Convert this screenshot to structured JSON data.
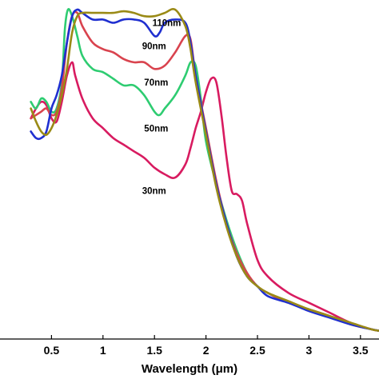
{
  "chart_data": {
    "type": "line",
    "xlabel": "Wavelength (μm)",
    "ylabel": "",
    "xlim": [
      0,
      3.68
    ],
    "ylim": [
      0,
      1.0
    ],
    "xticks": [
      {
        "value": 0.5,
        "label": "0.5"
      },
      {
        "value": 1.0,
        "label": "1"
      },
      {
        "value": 1.5,
        "label": "1.5"
      },
      {
        "value": 2.0,
        "label": "2"
      },
      {
        "value": 2.5,
        "label": "2.5"
      },
      {
        "value": 3.0,
        "label": "3"
      },
      {
        "value": 3.5,
        "label": "3.5"
      }
    ],
    "grid": false,
    "legend": "none",
    "series": [
      {
        "name": "30nm",
        "color": "#d81b60",
        "points": [
          [
            0.3,
            0.67
          ],
          [
            0.35,
            0.7
          ],
          [
            0.4,
            0.72
          ],
          [
            0.45,
            0.71
          ],
          [
            0.5,
            0.67
          ],
          [
            0.55,
            0.66
          ],
          [
            0.6,
            0.72
          ],
          [
            0.65,
            0.8
          ],
          [
            0.7,
            0.84
          ],
          [
            0.73,
            0.8
          ],
          [
            0.8,
            0.73
          ],
          [
            0.9,
            0.67
          ],
          [
            1.0,
            0.64
          ],
          [
            1.1,
            0.61
          ],
          [
            1.2,
            0.59
          ],
          [
            1.3,
            0.57
          ],
          [
            1.4,
            0.55
          ],
          [
            1.5,
            0.52
          ],
          [
            1.6,
            0.5
          ],
          [
            1.7,
            0.49
          ],
          [
            1.8,
            0.53
          ],
          [
            1.85,
            0.58
          ],
          [
            1.9,
            0.64
          ],
          [
            1.95,
            0.69
          ],
          [
            2.0,
            0.75
          ],
          [
            2.05,
            0.79
          ],
          [
            2.1,
            0.78
          ],
          [
            2.15,
            0.68
          ],
          [
            2.2,
            0.55
          ],
          [
            2.25,
            0.45
          ],
          [
            2.3,
            0.44
          ],
          [
            2.35,
            0.42
          ],
          [
            2.4,
            0.35
          ],
          [
            2.5,
            0.24
          ],
          [
            2.6,
            0.19
          ],
          [
            2.8,
            0.14
          ],
          [
            3.0,
            0.11
          ],
          [
            3.2,
            0.08
          ],
          [
            3.4,
            0.05
          ],
          [
            3.6,
            0.03
          ],
          [
            3.68,
            0.025
          ]
        ]
      },
      {
        "name": "50nm",
        "color": "#2ecc71",
        "points": [
          [
            0.3,
            0.72
          ],
          [
            0.35,
            0.7
          ],
          [
            0.4,
            0.73
          ],
          [
            0.45,
            0.72
          ],
          [
            0.5,
            0.69
          ],
          [
            0.55,
            0.7
          ],
          [
            0.6,
            0.78
          ],
          [
            0.63,
            0.94
          ],
          [
            0.66,
            1.0
          ],
          [
            0.7,
            0.98
          ],
          [
            0.75,
            0.92
          ],
          [
            0.8,
            0.86
          ],
          [
            0.9,
            0.82
          ],
          [
            1.0,
            0.81
          ],
          [
            1.1,
            0.79
          ],
          [
            1.2,
            0.77
          ],
          [
            1.3,
            0.77
          ],
          [
            1.4,
            0.74
          ],
          [
            1.5,
            0.69
          ],
          [
            1.55,
            0.68
          ],
          [
            1.6,
            0.7
          ],
          [
            1.7,
            0.74
          ],
          [
            1.8,
            0.8
          ],
          [
            1.85,
            0.84
          ],
          [
            1.9,
            0.83
          ],
          [
            1.95,
            0.73
          ],
          [
            2.0,
            0.6
          ],
          [
            2.1,
            0.47
          ],
          [
            2.2,
            0.36
          ],
          [
            2.3,
            0.27
          ],
          [
            2.4,
            0.2
          ],
          [
            2.5,
            0.16
          ],
          [
            2.6,
            0.14
          ],
          [
            2.8,
            0.11
          ],
          [
            3.0,
            0.09
          ],
          [
            3.2,
            0.07
          ],
          [
            3.4,
            0.045
          ],
          [
            3.6,
            0.03
          ],
          [
            3.68,
            0.025
          ]
        ]
      },
      {
        "name": "70nm",
        "color": "#d9434e",
        "points": [
          [
            0.3,
            0.67
          ],
          [
            0.35,
            0.68
          ],
          [
            0.4,
            0.69
          ],
          [
            0.45,
            0.7
          ],
          [
            0.5,
            0.68
          ],
          [
            0.55,
            0.69
          ],
          [
            0.6,
            0.76
          ],
          [
            0.65,
            0.9
          ],
          [
            0.7,
            0.98
          ],
          [
            0.75,
            0.99
          ],
          [
            0.8,
            0.95
          ],
          [
            0.9,
            0.9
          ],
          [
            1.0,
            0.88
          ],
          [
            1.1,
            0.87
          ],
          [
            1.2,
            0.85
          ],
          [
            1.3,
            0.84
          ],
          [
            1.4,
            0.84
          ],
          [
            1.5,
            0.82
          ],
          [
            1.6,
            0.83
          ],
          [
            1.7,
            0.87
          ],
          [
            1.8,
            0.92
          ],
          [
            1.85,
            0.91
          ],
          [
            1.9,
            0.8
          ],
          [
            2.0,
            0.64
          ],
          [
            2.1,
            0.48
          ],
          [
            2.2,
            0.35
          ],
          [
            2.3,
            0.26
          ],
          [
            2.4,
            0.2
          ],
          [
            2.5,
            0.16
          ],
          [
            2.6,
            0.14
          ],
          [
            2.8,
            0.11
          ],
          [
            3.0,
            0.09
          ],
          [
            3.2,
            0.07
          ],
          [
            3.4,
            0.045
          ],
          [
            3.6,
            0.03
          ],
          [
            3.68,
            0.025
          ]
        ]
      },
      {
        "name": "90nm",
        "color": "#1f2fd0",
        "points": [
          [
            0.3,
            0.63
          ],
          [
            0.35,
            0.61
          ],
          [
            0.4,
            0.61
          ],
          [
            0.45,
            0.63
          ],
          [
            0.5,
            0.7
          ],
          [
            0.55,
            0.74
          ],
          [
            0.6,
            0.8
          ],
          [
            0.65,
            0.9
          ],
          [
            0.7,
            0.98
          ],
          [
            0.75,
            1.0
          ],
          [
            0.8,
            0.99
          ],
          [
            0.9,
            0.97
          ],
          [
            1.0,
            0.97
          ],
          [
            1.1,
            0.96
          ],
          [
            1.2,
            0.97
          ],
          [
            1.3,
            0.97
          ],
          [
            1.4,
            0.96
          ],
          [
            1.5,
            0.92
          ],
          [
            1.55,
            0.93
          ],
          [
            1.6,
            0.96
          ],
          [
            1.7,
            0.97
          ],
          [
            1.8,
            0.96
          ],
          [
            1.85,
            0.9
          ],
          [
            1.9,
            0.8
          ],
          [
            2.0,
            0.63
          ],
          [
            2.1,
            0.47
          ],
          [
            2.2,
            0.35
          ],
          [
            2.3,
            0.25
          ],
          [
            2.4,
            0.19
          ],
          [
            2.5,
            0.16
          ],
          [
            2.6,
            0.13
          ],
          [
            2.8,
            0.11
          ],
          [
            3.0,
            0.085
          ],
          [
            3.2,
            0.065
          ],
          [
            3.4,
            0.045
          ],
          [
            3.6,
            0.03
          ],
          [
            3.68,
            0.025
          ]
        ]
      },
      {
        "name": "110nm",
        "color": "#9a8a16",
        "points": [
          [
            0.3,
            0.7
          ],
          [
            0.35,
            0.66
          ],
          [
            0.4,
            0.63
          ],
          [
            0.45,
            0.62
          ],
          [
            0.5,
            0.64
          ],
          [
            0.55,
            0.68
          ],
          [
            0.6,
            0.74
          ],
          [
            0.65,
            0.82
          ],
          [
            0.7,
            0.93
          ],
          [
            0.75,
            0.98
          ],
          [
            0.8,
            0.99
          ],
          [
            0.9,
            0.99
          ],
          [
            1.0,
            0.99
          ],
          [
            1.1,
            0.99
          ],
          [
            1.2,
            0.995
          ],
          [
            1.3,
            0.99
          ],
          [
            1.4,
            0.98
          ],
          [
            1.5,
            0.98
          ],
          [
            1.6,
            0.99
          ],
          [
            1.7,
            1.0
          ],
          [
            1.8,
            0.95
          ],
          [
            1.85,
            0.88
          ],
          [
            1.9,
            0.78
          ],
          [
            2.0,
            0.62
          ],
          [
            2.1,
            0.46
          ],
          [
            2.2,
            0.34
          ],
          [
            2.3,
            0.25
          ],
          [
            2.4,
            0.19
          ],
          [
            2.5,
            0.16
          ],
          [
            2.6,
            0.14
          ],
          [
            2.8,
            0.115
          ],
          [
            3.0,
            0.09
          ],
          [
            3.2,
            0.07
          ],
          [
            3.4,
            0.05
          ],
          [
            3.6,
            0.03
          ],
          [
            3.68,
            0.025
          ]
        ]
      }
    ],
    "annotations": [
      {
        "text": "110nm",
        "x": 1.48,
        "y": 0.95
      },
      {
        "text": "90nm",
        "x": 1.38,
        "y": 0.88
      },
      {
        "text": "70nm",
        "x": 1.4,
        "y": 0.77
      },
      {
        "text": "50nm",
        "x": 1.4,
        "y": 0.63
      },
      {
        "text": "30nm",
        "x": 1.38,
        "y": 0.44
      }
    ]
  }
}
